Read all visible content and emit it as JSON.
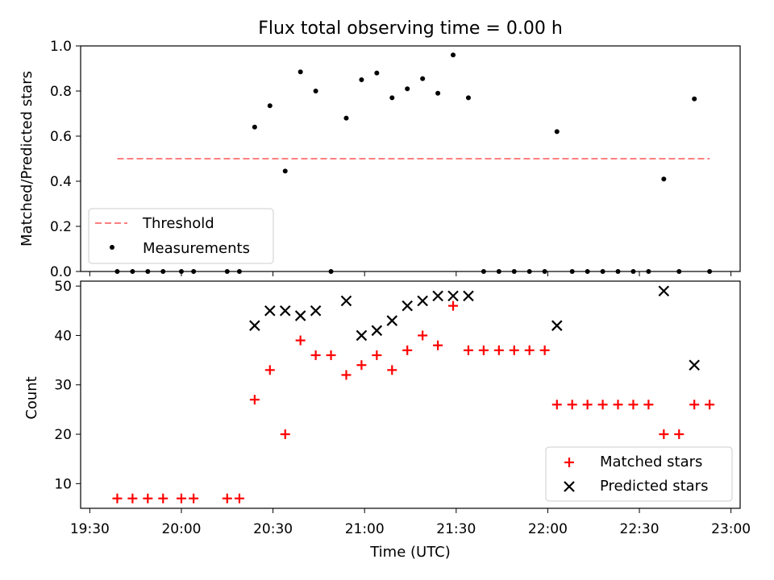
{
  "chart_data": [
    {
      "type": "scatter",
      "title": "Flux total observing time = 0.00 h",
      "xlabel": "",
      "ylabel": "Matched/Predicted stars",
      "xlim": [
        "19:27",
        "23:03"
      ],
      "ylim": [
        0,
        1
      ],
      "yticks": [
        "0.0",
        "0.2",
        "0.4",
        "0.6",
        "0.8",
        "1.0"
      ],
      "xticks": [
        "19:30",
        "20:00",
        "20:30",
        "21:00",
        "21:30",
        "22:00",
        "22:30",
        "23:00"
      ],
      "xtick_labels_shown": false,
      "grid": false,
      "legend_position": "lower-left",
      "series": [
        {
          "name": "Threshold",
          "style": "dashed-line",
          "color": "#ff7f7f",
          "x": [
            "19:39",
            "22:53"
          ],
          "y": [
            0.5,
            0.5
          ]
        },
        {
          "name": "Measurements",
          "style": "dot",
          "color": "#000000",
          "x": [
            "19:39",
            "19:44",
            "19:49",
            "19:54",
            "20:00",
            "20:04",
            "20:15",
            "20:19",
            "20:24",
            "20:29",
            "20:34",
            "20:39",
            "20:44",
            "20:49",
            "20:54",
            "20:59",
            "21:04",
            "21:09",
            "21:14",
            "21:19",
            "21:24",
            "21:29",
            "21:34",
            "21:39",
            "21:44",
            "21:49",
            "21:54",
            "21:59",
            "22:03",
            "22:08",
            "22:13",
            "22:18",
            "22:23",
            "22:28",
            "22:33",
            "22:38",
            "22:43",
            "22:48",
            "22:53"
          ],
          "y": [
            0,
            0,
            0,
            0,
            0,
            0,
            0,
            0,
            0.64,
            0.735,
            0.445,
            0.885,
            0.8,
            0,
            0.68,
            0.85,
            0.88,
            0.77,
            0.81,
            0.855,
            0.79,
            0.96,
            0.77,
            0,
            0,
            0,
            0,
            0,
            0.62,
            0,
            0,
            0,
            0,
            0,
            0,
            0.41,
            0,
            0.765,
            0
          ]
        }
      ]
    },
    {
      "type": "scatter",
      "title": "",
      "xlabel": "Time (UTC)",
      "ylabel": "Count",
      "xlim": [
        "19:27",
        "23:03"
      ],
      "ylim": [
        5,
        51
      ],
      "yticks": [
        "10",
        "20",
        "30",
        "40",
        "50"
      ],
      "xticks": [
        "19:30",
        "20:00",
        "20:30",
        "21:00",
        "21:30",
        "22:00",
        "22:30",
        "23:00"
      ],
      "grid": false,
      "legend_position": "lower-right",
      "series": [
        {
          "name": "Matched stars",
          "marker": "plus",
          "color": "#ff0000",
          "x": [
            "19:39",
            "19:44",
            "19:49",
            "19:54",
            "20:00",
            "20:04",
            "20:15",
            "20:19",
            "20:24",
            "20:29",
            "20:34",
            "20:39",
            "20:44",
            "20:49",
            "20:54",
            "20:59",
            "21:04",
            "21:09",
            "21:14",
            "21:19",
            "21:24",
            "21:29",
            "21:34",
            "21:39",
            "21:44",
            "21:49",
            "21:54",
            "21:59",
            "22:03",
            "22:08",
            "22:13",
            "22:18",
            "22:23",
            "22:28",
            "22:33",
            "22:38",
            "22:43",
            "22:48",
            "22:53"
          ],
          "y": [
            7,
            7,
            7,
            7,
            7,
            7,
            7,
            7,
            27,
            33,
            20,
            39,
            36,
            36,
            32,
            34,
            36,
            33,
            37,
            40,
            38,
            46,
            37,
            37,
            37,
            37,
            37,
            37,
            26,
            26,
            26,
            26,
            26,
            26,
            26,
            20,
            20,
            26,
            26
          ]
        },
        {
          "name": "Predicted stars",
          "marker": "x",
          "color": "#000000",
          "x": [
            "20:24",
            "20:29",
            "20:34",
            "20:39",
            "20:44",
            "20:54",
            "20:59",
            "21:04",
            "21:09",
            "21:14",
            "21:19",
            "21:24",
            "21:29",
            "21:34",
            "22:03",
            "22:38",
            "22:48"
          ],
          "y": [
            42,
            45,
            45,
            44,
            45,
            47,
            40,
            41,
            43,
            46,
            47,
            48,
            48,
            48,
            42,
            49,
            34
          ]
        }
      ]
    }
  ]
}
